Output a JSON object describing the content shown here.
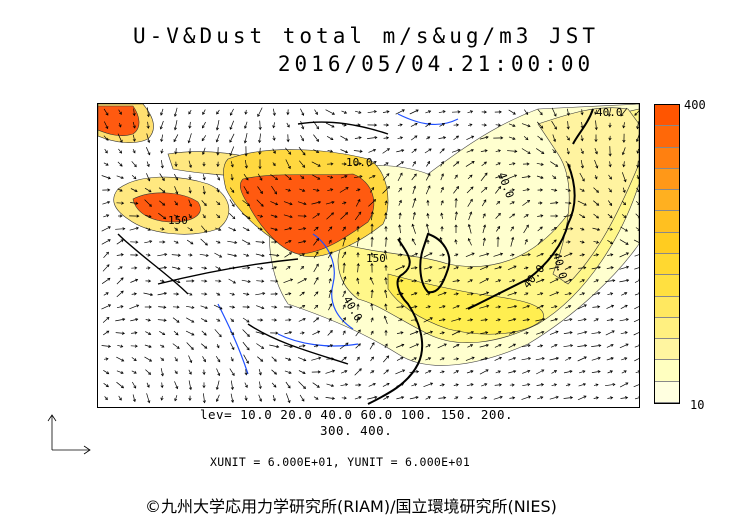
{
  "title": {
    "line1": "U-V&Dust total m/s&ug/m3 JST",
    "line2": "2016/05/04.21:00:00"
  },
  "colorbar": {
    "max_label": "400",
    "min_label": "10",
    "colors": [
      "#ffffe0",
      "#ffffc0",
      "#fff5a0",
      "#fff080",
      "#ffe860",
      "#ffe040",
      "#ffd830",
      "#ffcc20",
      "#ffc020",
      "#ffb020",
      "#ff9818",
      "#ff8010",
      "#ff6808",
      "#ff5500"
    ]
  },
  "legend": {
    "levels_line1": "lev= 10.0 20.0 40.0 60.0 100. 150. 200.",
    "levels_line2": "300. 400.",
    "units": "XUNIT = 6.000E+01, YUNIT = 6.000E+01"
  },
  "contour_labels": [
    "40.0",
    "10.0",
    "150",
    "150",
    "40.0",
    "40.0",
    "40.0",
    "40.0"
  ],
  "credit": "©九州大学応用力学研究所(RIAM)/国立環境研究所(NIES)"
}
